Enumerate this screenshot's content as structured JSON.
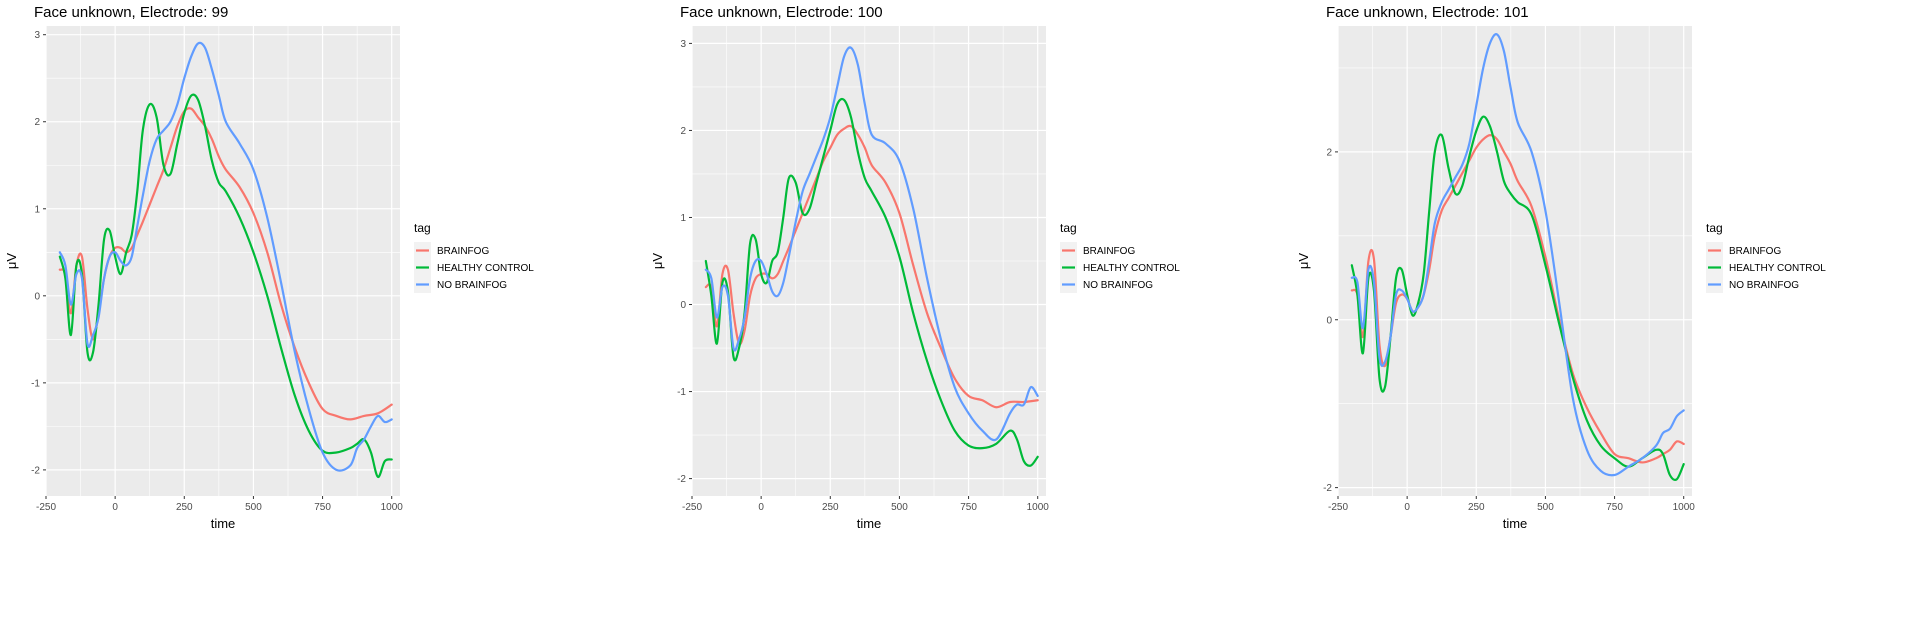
{
  "chart_data": [
    {
      "type": "line",
      "title": "Face unknown, Electrode: 99",
      "xlabel": "time",
      "ylabel": "μV",
      "xlim": [
        -250,
        1030
      ],
      "ylim": [
        -2.3,
        3.1
      ],
      "xticks": [
        -250,
        0,
        250,
        500,
        750,
        1000
      ],
      "yticks": [
        -2,
        -1,
        0,
        1,
        2,
        3
      ],
      "grid": true,
      "legend": {
        "title": "tag",
        "placement": "right"
      },
      "series": [
        {
          "name": "BRAINFOG",
          "color": "#F8766D",
          "x": [
            -200,
            -180,
            -160,
            -140,
            -120,
            -100,
            -80,
            -60,
            -40,
            -20,
            0,
            20,
            40,
            60,
            80,
            100,
            125,
            150,
            175,
            200,
            225,
            250,
            275,
            300,
            325,
            350,
            375,
            400,
            450,
            500,
            550,
            600,
            650,
            700,
            750,
            800,
            850,
            900,
            950,
            1000
          ],
          "y": [
            0.3,
            0.25,
            -0.2,
            0.35,
            0.45,
            -0.15,
            -0.5,
            -0.2,
            0.2,
            0.45,
            0.55,
            0.55,
            0.5,
            0.55,
            0.7,
            0.85,
            1.05,
            1.25,
            1.45,
            1.7,
            1.95,
            2.12,
            2.15,
            2.05,
            1.95,
            1.8,
            1.6,
            1.45,
            1.25,
            0.95,
            0.5,
            -0.1,
            -0.6,
            -1.0,
            -1.3,
            -1.38,
            -1.42,
            -1.38,
            -1.35,
            -1.25
          ]
        },
        {
          "name": "HEALTHY CONTROL",
          "color": "#00BA38",
          "x": [
            -200,
            -180,
            -160,
            -140,
            -120,
            -100,
            -80,
            -60,
            -40,
            -20,
            0,
            20,
            40,
            60,
            80,
            100,
            125,
            150,
            175,
            200,
            225,
            250,
            275,
            300,
            325,
            350,
            375,
            400,
            450,
            500,
            550,
            600,
            650,
            700,
            750,
            800,
            850,
            875,
            900,
            925,
            950,
            975,
            1000
          ],
          "y": [
            0.45,
            0.2,
            -0.45,
            0.35,
            0.25,
            -0.65,
            -0.65,
            -0.1,
            0.65,
            0.75,
            0.45,
            0.25,
            0.5,
            0.7,
            1.2,
            1.9,
            2.2,
            2.05,
            1.5,
            1.4,
            1.75,
            2.1,
            2.3,
            2.25,
            1.95,
            1.55,
            1.3,
            1.2,
            0.9,
            0.5,
            0.0,
            -0.6,
            -1.15,
            -1.55,
            -1.78,
            -1.8,
            -1.75,
            -1.7,
            -1.65,
            -1.8,
            -2.08,
            -1.9,
            -1.88
          ]
        },
        {
          "name": "NO BRAINFOG",
          "color": "#619CFF",
          "x": [
            -200,
            -180,
            -160,
            -140,
            -120,
            -100,
            -80,
            -60,
            -40,
            -20,
            0,
            20,
            40,
            60,
            80,
            100,
            125,
            150,
            175,
            200,
            225,
            250,
            275,
            300,
            325,
            350,
            375,
            400,
            450,
            500,
            550,
            600,
            650,
            700,
            750,
            800,
            850,
            875,
            900,
            925,
            950,
            975,
            1000
          ],
          "y": [
            0.5,
            0.35,
            -0.1,
            0.25,
            0.2,
            -0.55,
            -0.45,
            -0.25,
            0.2,
            0.45,
            0.5,
            0.4,
            0.35,
            0.45,
            0.8,
            1.15,
            1.55,
            1.8,
            1.9,
            2.0,
            2.2,
            2.5,
            2.75,
            2.9,
            2.85,
            2.6,
            2.3,
            2.0,
            1.75,
            1.45,
            0.9,
            0.15,
            -0.65,
            -1.3,
            -1.8,
            -2.0,
            -1.95,
            -1.75,
            -1.65,
            -1.5,
            -1.38,
            -1.45,
            -1.42
          ]
        }
      ]
    },
    {
      "type": "line",
      "title": "Face unknown, Electrode: 100",
      "xlabel": "time",
      "ylabel": "μV",
      "xlim": [
        -250,
        1030
      ],
      "ylim": [
        -2.2,
        3.2
      ],
      "xticks": [
        -250,
        0,
        250,
        500,
        750,
        1000
      ],
      "yticks": [
        -2,
        -1,
        0,
        1,
        2,
        3
      ],
      "grid": true,
      "legend": {
        "title": "tag",
        "placement": "right"
      },
      "series": [
        {
          "name": "BRAINFOG",
          "color": "#F8766D",
          "x": [
            -200,
            -180,
            -160,
            -140,
            -120,
            -100,
            -80,
            -60,
            -40,
            -20,
            0,
            20,
            40,
            60,
            80,
            100,
            125,
            150,
            175,
            200,
            225,
            250,
            275,
            300,
            325,
            350,
            375,
            400,
            450,
            500,
            550,
            600,
            650,
            700,
            750,
            800,
            850,
            900,
            950,
            1000
          ],
          "y": [
            0.2,
            0.2,
            -0.25,
            0.35,
            0.4,
            -0.1,
            -0.45,
            -0.3,
            0.1,
            0.3,
            0.35,
            0.35,
            0.3,
            0.35,
            0.5,
            0.65,
            0.85,
            1.05,
            1.25,
            1.45,
            1.65,
            1.8,
            1.95,
            2.02,
            2.05,
            1.95,
            1.8,
            1.6,
            1.4,
            1.05,
            0.45,
            -0.1,
            -0.5,
            -0.85,
            -1.05,
            -1.1,
            -1.18,
            -1.12,
            -1.12,
            -1.1
          ]
        },
        {
          "name": "HEALTHY CONTROL",
          "color": "#00BA38",
          "x": [
            -200,
            -180,
            -160,
            -140,
            -120,
            -100,
            -80,
            -60,
            -40,
            -20,
            0,
            20,
            40,
            60,
            80,
            100,
            125,
            150,
            175,
            200,
            225,
            250,
            275,
            300,
            325,
            350,
            375,
            400,
            450,
            500,
            550,
            600,
            650,
            700,
            750,
            800,
            850,
            900,
            925,
            950,
            975,
            1000
          ],
          "y": [
            0.5,
            0.1,
            -0.45,
            0.25,
            0.15,
            -0.6,
            -0.5,
            -0.1,
            0.7,
            0.75,
            0.35,
            0.25,
            0.5,
            0.6,
            1.0,
            1.45,
            1.4,
            1.05,
            1.1,
            1.4,
            1.7,
            2.0,
            2.3,
            2.35,
            2.15,
            1.75,
            1.45,
            1.3,
            1.0,
            0.55,
            -0.1,
            -0.65,
            -1.1,
            -1.45,
            -1.62,
            -1.65,
            -1.6,
            -1.45,
            -1.55,
            -1.8,
            -1.85,
            -1.75
          ]
        },
        {
          "name": "NO BRAINFOG",
          "color": "#619CFF",
          "x": [
            -200,
            -180,
            -160,
            -140,
            -120,
            -100,
            -80,
            -60,
            -40,
            -20,
            0,
            20,
            40,
            60,
            80,
            100,
            125,
            150,
            175,
            200,
            225,
            250,
            275,
            300,
            325,
            350,
            375,
            400,
            450,
            500,
            550,
            600,
            650,
            700,
            750,
            800,
            850,
            900,
            925,
            950,
            975,
            1000
          ],
          "y": [
            0.4,
            0.3,
            -0.15,
            0.2,
            0.1,
            -0.5,
            -0.4,
            -0.15,
            0.3,
            0.5,
            0.5,
            0.35,
            0.15,
            0.1,
            0.25,
            0.55,
            0.95,
            1.3,
            1.5,
            1.7,
            1.9,
            2.15,
            2.5,
            2.85,
            2.95,
            2.75,
            2.3,
            1.95,
            1.85,
            1.65,
            1.1,
            0.3,
            -0.4,
            -0.95,
            -1.25,
            -1.45,
            -1.55,
            -1.25,
            -1.15,
            -1.15,
            -0.95,
            -1.05
          ]
        }
      ]
    },
    {
      "type": "line",
      "title": "Face unknown, Electrode: 101",
      "xlabel": "time",
      "ylabel": "μV",
      "xlim": [
        -250,
        1030
      ],
      "ylim": [
        -2.1,
        3.5
      ],
      "xticks": [
        -250,
        0,
        250,
        500,
        750,
        1000
      ],
      "yticks": [
        -2,
        0,
        2
      ],
      "grid": true,
      "legend": {
        "title": "tag",
        "placement": "right"
      },
      "series": [
        {
          "name": "BRAINFOG",
          "color": "#F8766D",
          "x": [
            -200,
            -180,
            -160,
            -140,
            -120,
            -100,
            -80,
            -60,
            -40,
            -20,
            0,
            20,
            40,
            60,
            80,
            100,
            125,
            150,
            175,
            200,
            225,
            250,
            275,
            300,
            325,
            350,
            375,
            400,
            450,
            500,
            550,
            600,
            650,
            700,
            750,
            800,
            850,
            900,
            925,
            950,
            975,
            1000
          ],
          "y": [
            0.35,
            0.3,
            -0.2,
            0.7,
            0.72,
            -0.3,
            -0.55,
            -0.2,
            0.2,
            0.3,
            0.25,
            0.1,
            0.15,
            0.3,
            0.6,
            1.0,
            1.3,
            1.45,
            1.6,
            1.75,
            1.9,
            2.05,
            2.15,
            2.2,
            2.15,
            2.0,
            1.85,
            1.65,
            1.35,
            0.75,
            0.0,
            -0.65,
            -1.05,
            -1.35,
            -1.6,
            -1.65,
            -1.7,
            -1.65,
            -1.6,
            -1.55,
            -1.45,
            -1.48
          ]
        },
        {
          "name": "HEALTHY CONTROL",
          "color": "#00BA38",
          "x": [
            -200,
            -180,
            -160,
            -140,
            -120,
            -100,
            -80,
            -60,
            -40,
            -20,
            0,
            20,
            40,
            60,
            80,
            100,
            125,
            150,
            175,
            200,
            225,
            250,
            275,
            300,
            325,
            350,
            375,
            400,
            450,
            500,
            550,
            600,
            650,
            700,
            750,
            800,
            850,
            900,
            925,
            950,
            975,
            1000
          ],
          "y": [
            0.65,
            0.3,
            -0.4,
            0.5,
            0.35,
            -0.7,
            -0.8,
            -0.2,
            0.5,
            0.6,
            0.3,
            0.05,
            0.2,
            0.55,
            1.3,
            2.0,
            2.2,
            1.8,
            1.5,
            1.6,
            1.95,
            2.25,
            2.42,
            2.3,
            2.0,
            1.65,
            1.5,
            1.4,
            1.25,
            0.65,
            -0.05,
            -0.7,
            -1.2,
            -1.5,
            -1.65,
            -1.75,
            -1.65,
            -1.55,
            -1.6,
            -1.85,
            -1.9,
            -1.72
          ]
        },
        {
          "name": "NO BRAINFOG",
          "color": "#619CFF",
          "x": [
            -200,
            -180,
            -160,
            -140,
            -120,
            -100,
            -80,
            -60,
            -40,
            -20,
            0,
            20,
            40,
            60,
            80,
            100,
            125,
            150,
            175,
            200,
            225,
            250,
            275,
            300,
            325,
            350,
            375,
            400,
            450,
            500,
            550,
            600,
            650,
            700,
            750,
            800,
            850,
            900,
            925,
            950,
            975,
            1000
          ],
          "y": [
            0.5,
            0.45,
            -0.1,
            0.6,
            0.45,
            -0.45,
            -0.5,
            -0.2,
            0.3,
            0.35,
            0.25,
            0.1,
            0.15,
            0.3,
            0.7,
            1.15,
            1.4,
            1.55,
            1.7,
            1.85,
            2.1,
            2.55,
            3.0,
            3.3,
            3.4,
            3.2,
            2.75,
            2.35,
            2.0,
            1.3,
            0.2,
            -0.95,
            -1.55,
            -1.8,
            -1.85,
            -1.75,
            -1.65,
            -1.5,
            -1.35,
            -1.3,
            -1.15,
            -1.08
          ]
        }
      ]
    }
  ]
}
